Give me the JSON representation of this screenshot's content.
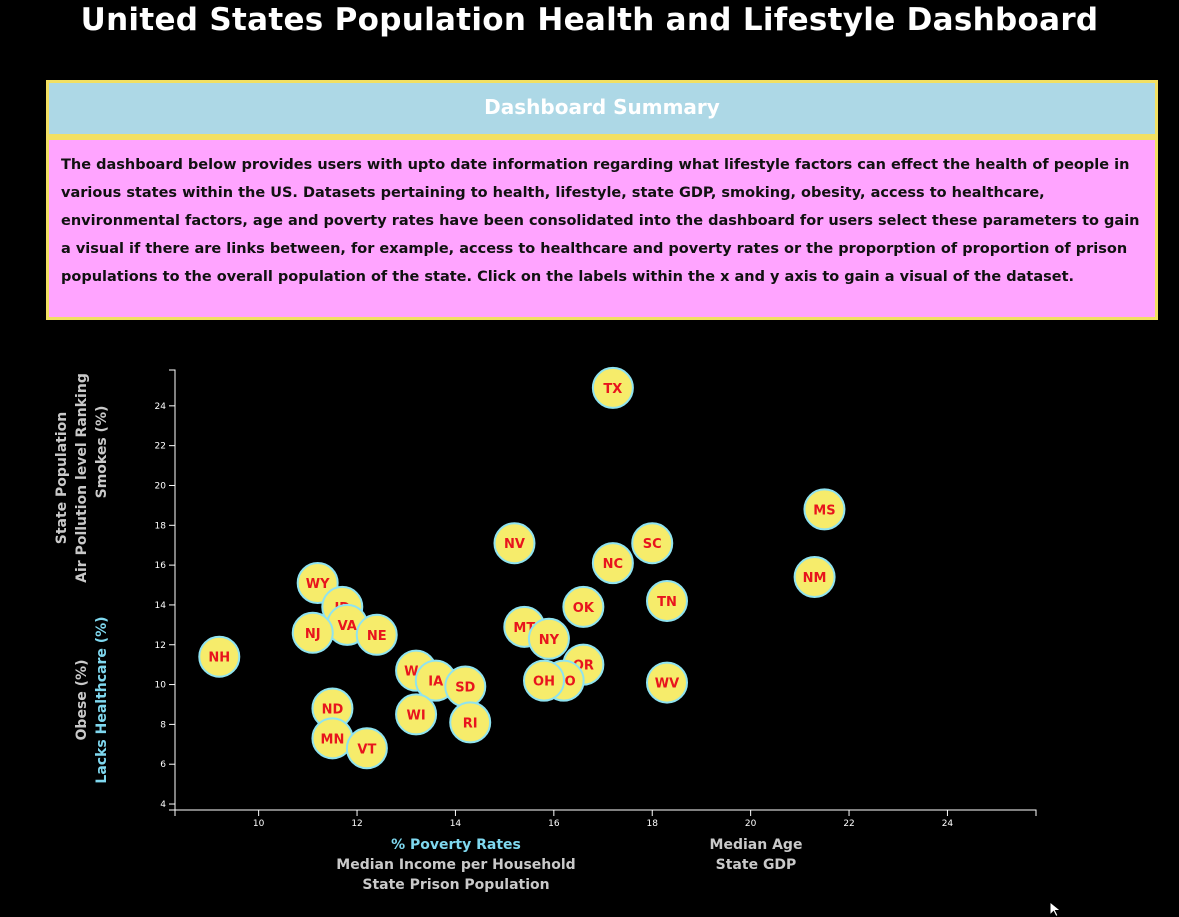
{
  "page": {
    "title": "United States Population Health and Lifestyle Dashboard"
  },
  "summary": {
    "heading": "Dashboard Summary",
    "body": "The dashboard below provides users with upto date information regarding what lifestyle factors can effect the health of people in various states within the US. Datasets pertaining to health, lifestyle, state GDP, smoking, obesity, access to healthcare, environmental factors, age and poverty rates have been consolidated into the dashboard for users select these parameters to gain a visual if there are links between, for example, access to healthcare and poverty rates or the proporption of proportion of prison populations to the overall population of the state. Click on the labels within the x and y axis to gain a visual of the dataset."
  },
  "axis_labels": {
    "x": [
      "% Poverty Rates",
      "Median Income per Household",
      "State Prison Population",
      "Median Age",
      "State GDP"
    ],
    "y": [
      "Lacks Healthcare (%)",
      "Obese (%)",
      "Smokes (%)",
      "Air Pollution level Ranking",
      "State Population"
    ],
    "x_active": "% Poverty Rates",
    "y_active": "Lacks Healthcare (%)"
  },
  "colors": {
    "background": "#000000",
    "marker_fill": "#f6ec6b",
    "marker_stroke": "#8fe3f0",
    "marker_text": "#e8141d",
    "active_label": "#7fd8ef",
    "inactive_label": "#c9c9c9"
  },
  "chart_data": {
    "type": "scatter",
    "title": "",
    "xlabel": "% Poverty Rates",
    "ylabel": "Lacks Healthcare (%)",
    "xlim": [
      8.3,
      25.8
    ],
    "ylim": [
      3.7,
      25.8
    ],
    "xticks": [
      10,
      12,
      14,
      16,
      18,
      20,
      22,
      24
    ],
    "yticks": [
      4,
      6,
      8,
      10,
      12,
      14,
      16,
      18,
      20,
      22,
      24
    ],
    "points": [
      {
        "label": "TX",
        "x": 17.2,
        "y": 24.9
      },
      {
        "label": "MS",
        "x": 21.5,
        "y": 18.8
      },
      {
        "label": "NV",
        "x": 15.2,
        "y": 17.1
      },
      {
        "label": "SC",
        "x": 18.0,
        "y": 17.1
      },
      {
        "label": "NC",
        "x": 17.2,
        "y": 16.1
      },
      {
        "label": "NM",
        "x": 21.3,
        "y": 15.4
      },
      {
        "label": "WY",
        "x": 11.2,
        "y": 15.1
      },
      {
        "label": "TN",
        "x": 18.3,
        "y": 14.2
      },
      {
        "label": "OK",
        "x": 16.6,
        "y": 13.9
      },
      {
        "label": "ID",
        "x": 11.7,
        "y": 13.9
      },
      {
        "label": "MT",
        "x": 15.4,
        "y": 12.9
      },
      {
        "label": "VA",
        "x": 11.8,
        "y": 13.0
      },
      {
        "label": "NJ",
        "x": 11.1,
        "y": 12.6
      },
      {
        "label": "NE",
        "x": 12.4,
        "y": 12.5
      },
      {
        "label": "NY",
        "x": 15.9,
        "y": 12.3
      },
      {
        "label": "NH",
        "x": 9.2,
        "y": 11.4
      },
      {
        "label": "OR",
        "x": 16.6,
        "y": 11.0
      },
      {
        "label": "WA",
        "x": 13.2,
        "y": 10.7
      },
      {
        "label": "IA",
        "x": 13.6,
        "y": 10.2
      },
      {
        "label": "MO",
        "x": 16.2,
        "y": 10.2
      },
      {
        "label": "OH",
        "x": 15.8,
        "y": 10.2
      },
      {
        "label": "SD",
        "x": 14.2,
        "y": 9.9
      },
      {
        "label": "WV",
        "x": 18.3,
        "y": 10.1
      },
      {
        "label": "ND",
        "x": 11.5,
        "y": 8.8
      },
      {
        "label": "WI",
        "x": 13.2,
        "y": 8.5
      },
      {
        "label": "RI",
        "x": 14.3,
        "y": 8.1
      },
      {
        "label": "MN",
        "x": 11.5,
        "y": 7.3
      },
      {
        "label": "VT",
        "x": 12.2,
        "y": 6.8
      }
    ]
  }
}
